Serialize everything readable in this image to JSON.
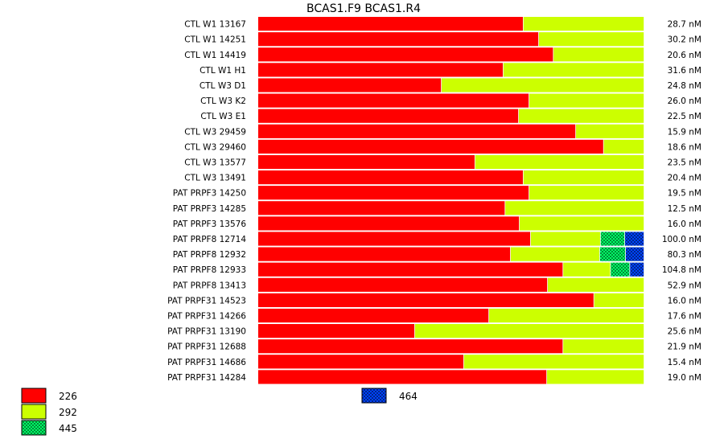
{
  "chart_data": {
    "type": "bar",
    "orientation": "horizontal",
    "stacked": "normalized",
    "title": "BCAS1.F9  BCAS1.R4",
    "categories": [
      "CTL W1 13167",
      "CTL W1 14251",
      "CTL W1 14419",
      "CTL W1 H1",
      "CTL W3 D1",
      "CTL W3 K2",
      "CTL W3 E1",
      "CTL W3 29459",
      "CTL W3 29460",
      "CTL W3 13577",
      "CTL W3 13491",
      "PAT PRPF3 14250",
      "PAT PRPF3 14285",
      "PAT PRPF3 13576",
      "PAT PRPF8 12714",
      "PAT PRPF8 12932",
      "PAT PRPF8 12933",
      "PAT PRPF8 13413",
      "PAT PRPF31 14523",
      "PAT PRPF31 14266",
      "PAT PRPF31 13190",
      "PAT PRPF31 12688",
      "PAT PRPF31 14686",
      "PAT PRPF31 14284"
    ],
    "totals": [
      "28.7 nM",
      "30.2 nM",
      "20.6 nM",
      "31.6 nM",
      "24.8 nM",
      "26.0 nM",
      "22.5 nM",
      "15.9 nM",
      "18.6 nM",
      "23.5 nM",
      "20.4 nM",
      "19.5 nM",
      "12.5 nM",
      "16.0 nM",
      "100.0 nM",
      "80.3 nM",
      "104.8 nM",
      "52.9 nM",
      "16.0 nM",
      "17.6 nM",
      "25.6 nM",
      "21.9 nM",
      "15.4 nM",
      "19.0 nM"
    ],
    "series": [
      {
        "name": "226",
        "color": "#ff0000",
        "pattern": "solid",
        "values": [
          0.687,
          0.727,
          0.765,
          0.635,
          0.475,
          0.702,
          0.675,
          0.823,
          0.895,
          0.562,
          0.687,
          0.702,
          0.64,
          0.677,
          0.706,
          0.654,
          0.79,
          0.75,
          0.87,
          0.598,
          0.406,
          0.79,
          0.533,
          0.748
        ]
      },
      {
        "name": "292",
        "color": "#ccff00",
        "pattern": "solid",
        "values": [
          0.313,
          0.273,
          0.235,
          0.365,
          0.525,
          0.298,
          0.325,
          0.177,
          0.105,
          0.438,
          0.313,
          0.298,
          0.36,
          0.323,
          0.181,
          0.231,
          0.123,
          0.25,
          0.13,
          0.402,
          0.594,
          0.21,
          0.467,
          0.252
        ]
      },
      {
        "name": "445",
        "color": "#00ff66",
        "pattern": "checker",
        "values": [
          0,
          0,
          0,
          0,
          0,
          0,
          0,
          0,
          0,
          0,
          0,
          0,
          0,
          0,
          0.063,
          0.067,
          0.05,
          0,
          0,
          0,
          0,
          0,
          0,
          0
        ]
      },
      {
        "name": "464",
        "color": "#0044ff",
        "pattern": "checker",
        "values": [
          0,
          0,
          0,
          0,
          0,
          0,
          0,
          0,
          0,
          0,
          0,
          0,
          0,
          0,
          0.05,
          0.048,
          0.037,
          0,
          0,
          0,
          0,
          0,
          0,
          0
        ]
      }
    ],
    "xlim": [
      0,
      1
    ],
    "grid": false,
    "legend": [
      {
        "label": "226",
        "series": 0,
        "position": "bottom-left"
      },
      {
        "label": "292",
        "series": 1,
        "position": "bottom-left"
      },
      {
        "label": "445",
        "series": 2,
        "position": "bottom-left"
      },
      {
        "label": "464",
        "series": 3,
        "position": "bottom-center"
      }
    ]
  }
}
